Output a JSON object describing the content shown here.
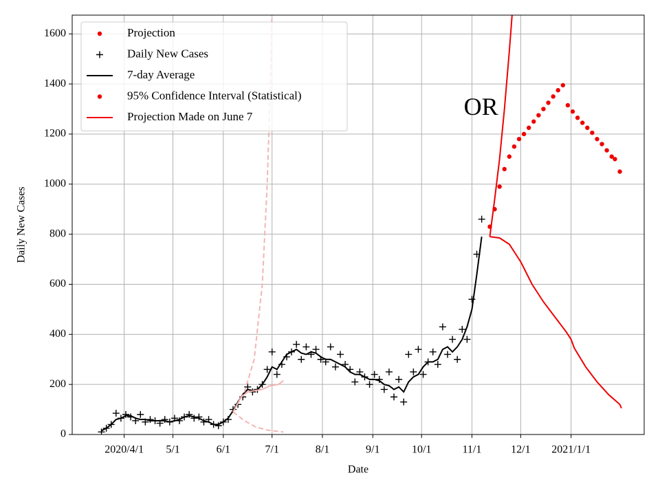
{
  "chart_data": {
    "type": "line",
    "xlabel": "Date",
    "ylabel": "Daily New Cases",
    "xlim": [
      "2020-02-29",
      "2021-02-15"
    ],
    "xticks": [
      {
        "value": "2020-04-01",
        "label": "2020/4/1"
      },
      {
        "value": "2020-05-01",
        "label": "5/1"
      },
      {
        "value": "2020-06-01",
        "label": "6/1"
      },
      {
        "value": "2020-07-01",
        "label": "7/1"
      },
      {
        "value": "2020-08-01",
        "label": "8/1"
      },
      {
        "value": "2020-09-01",
        "label": "9/1"
      },
      {
        "value": "2020-10-01",
        "label": "10/1"
      },
      {
        "value": "2020-11-01",
        "label": "11/1"
      },
      {
        "value": "2020-12-01",
        "label": "12/1"
      },
      {
        "value": "2021-01-01",
        "label": "2021/1/1"
      }
    ],
    "ylim": [
      0,
      1675
    ],
    "yticks": [
      0,
      200,
      400,
      600,
      800,
      1000,
      1200,
      1400,
      1600
    ],
    "grid": true,
    "legend": "upper left",
    "annotations": [
      {
        "text": "OR",
        "x": "2020-10-27",
        "y": 1300
      }
    ],
    "x": [
      "2020-03-18",
      "2020-03-21",
      "2020-03-24",
      "2020-03-27",
      "2020-03-30",
      "2020-04-02",
      "2020-04-05",
      "2020-04-08",
      "2020-04-11",
      "2020-04-14",
      "2020-04-17",
      "2020-04-20",
      "2020-04-23",
      "2020-04-26",
      "2020-04-29",
      "2020-05-02",
      "2020-05-05",
      "2020-05-08",
      "2020-05-11",
      "2020-05-14",
      "2020-05-17",
      "2020-05-20",
      "2020-05-23",
      "2020-05-26",
      "2020-05-29",
      "2020-06-01",
      "2020-06-04",
      "2020-06-07",
      "2020-06-10",
      "2020-06-13",
      "2020-06-16",
      "2020-06-19",
      "2020-06-22",
      "2020-06-25",
      "2020-06-28",
      "2020-07-01",
      "2020-07-04",
      "2020-07-07",
      "2020-07-10",
      "2020-07-13",
      "2020-07-16",
      "2020-07-19",
      "2020-07-22",
      "2020-07-25",
      "2020-07-28",
      "2020-07-31",
      "2020-08-03",
      "2020-08-06",
      "2020-08-09",
      "2020-08-12",
      "2020-08-15",
      "2020-08-18",
      "2020-08-21",
      "2020-08-24",
      "2020-08-27",
      "2020-08-30",
      "2020-09-02",
      "2020-09-05",
      "2020-09-08",
      "2020-09-11",
      "2020-09-14",
      "2020-09-17",
      "2020-09-20",
      "2020-09-23",
      "2020-09-26",
      "2020-09-29",
      "2020-10-02",
      "2020-10-05",
      "2020-10-08",
      "2020-10-11",
      "2020-10-14",
      "2020-10-17",
      "2020-10-20",
      "2020-10-23",
      "2020-10-26",
      "2020-10-29",
      "2020-11-01",
      "2020-11-04",
      "2020-11-07"
    ],
    "series": [
      {
        "name": "Projection",
        "color": "#ee0000",
        "marker": "dot",
        "x": [
          "2020-11-12",
          "2020-11-15",
          "2020-11-18",
          "2020-11-21",
          "2020-11-24",
          "2020-11-27",
          "2020-11-30",
          "2020-12-03",
          "2020-12-06",
          "2020-12-09",
          "2020-12-12",
          "2020-12-15",
          "2020-12-18",
          "2020-12-21",
          "2020-12-24",
          "2020-12-27"
        ],
        "values": [
          830,
          900,
          990,
          1060,
          1110,
          1150,
          1180,
          1200,
          1225,
          1250,
          1275,
          1300,
          1325,
          1350,
          1375,
          1395
        ]
      },
      {
        "name": "Daily New Cases",
        "color": "#000000",
        "marker": "plus",
        "values": [
          10,
          25,
          40,
          85,
          65,
          80,
          70,
          55,
          80,
          50,
          60,
          55,
          45,
          60,
          50,
          65,
          55,
          70,
          80,
          65,
          70,
          50,
          60,
          40,
          35,
          50,
          60,
          100,
          120,
          150,
          190,
          170,
          180,
          200,
          260,
          330,
          240,
          280,
          310,
          330,
          360,
          300,
          350,
          320,
          340,
          300,
          290,
          350,
          270,
          320,
          280,
          260,
          210,
          250,
          230,
          200,
          240,
          220,
          180,
          250,
          150,
          220,
          130,
          320,
          250,
          340,
          240,
          290,
          330,
          280,
          430,
          320,
          380,
          300,
          420,
          380,
          540,
          720,
          860
        ]
      },
      {
        "name": "7-day Average",
        "color": "#000000",
        "line": "solid",
        "values": [
          15,
          25,
          40,
          60,
          65,
          75,
          75,
          65,
          60,
          60,
          55,
          55,
          55,
          55,
          50,
          55,
          60,
          70,
          75,
          70,
          65,
          55,
          50,
          40,
          40,
          50,
          65,
          95,
          130,
          160,
          180,
          175,
          180,
          200,
          230,
          270,
          260,
          290,
          320,
          330,
          340,
          325,
          320,
          330,
          325,
          310,
          300,
          300,
          290,
          280,
          270,
          250,
          240,
          240,
          230,
          220,
          220,
          215,
          200,
          195,
          180,
          190,
          170,
          210,
          230,
          240,
          270,
          290,
          290,
          300,
          340,
          350,
          330,
          350,
          380,
          430,
          500,
          640,
          790
        ]
      },
      {
        "name": "95% Confidence Interval (Statistical)",
        "color": "#ee0000",
        "marker": "dot",
        "x": [
          "2020-12-30",
          "2021-01-02",
          "2021-01-05",
          "2021-01-08",
          "2021-01-11",
          "2021-01-14",
          "2021-01-17",
          "2021-01-20",
          "2021-01-23",
          "2021-01-26",
          "2021-01-28",
          "2021-01-31"
        ],
        "values": [
          1315,
          1290,
          1265,
          1245,
          1225,
          1205,
          1180,
          1160,
          1135,
          1110,
          1100,
          1050
        ]
      },
      {
        "name": "Projection Made on June 7",
        "color": "#ee0000",
        "line": "solid",
        "x": [
          "2020-11-12",
          "2020-11-18",
          "2020-11-24",
          "2020-12-01",
          "2020-12-08",
          "2020-12-15",
          "2020-12-22",
          "2020-12-29",
          "2021-01-01",
          "2021-01-03",
          "2021-01-10",
          "2021-01-17",
          "2021-01-24",
          "2021-01-31",
          "2021-02-01"
        ],
        "values": [
          790,
          785,
          760,
          690,
          600,
          530,
          470,
          410,
          380,
          345,
          270,
          210,
          160,
          120,
          105
        ]
      },
      {
        "color": "#ee0000",
        "line": "solid",
        "x": [
          "2020-11-12",
          "2020-11-15",
          "2020-11-18",
          "2020-11-21",
          "2020-11-24",
          "2020-11-26"
        ],
        "values": [
          790,
          940,
          1100,
          1300,
          1530,
          1700
        ]
      },
      {
        "color": "#f4b4b4",
        "line": "dashed",
        "x": [
          "2020-06-07",
          "2020-06-14",
          "2020-06-20",
          "2020-06-25",
          "2020-06-28",
          "2020-06-30",
          "2020-07-01"
        ],
        "values": [
          90,
          170,
          300,
          600,
          1000,
          1400,
          1700
        ]
      },
      {
        "color": "#f4b4b4",
        "line": "dashed",
        "x": [
          "2020-06-07",
          "2020-06-14",
          "2020-06-21",
          "2020-06-28",
          "2020-07-05",
          "2020-07-08"
        ],
        "values": [
          90,
          55,
          30,
          18,
          12,
          10
        ]
      },
      {
        "color": "#f4b4b4",
        "line": "solid",
        "x": [
          "2020-06-07",
          "2020-06-12",
          "2020-06-16",
          "2020-06-20",
          "2020-06-25",
          "2020-06-30",
          "2020-07-05",
          "2020-07-08"
        ],
        "values": [
          90,
          150,
          170,
          175,
          180,
          195,
          200,
          215
        ]
      }
    ]
  }
}
